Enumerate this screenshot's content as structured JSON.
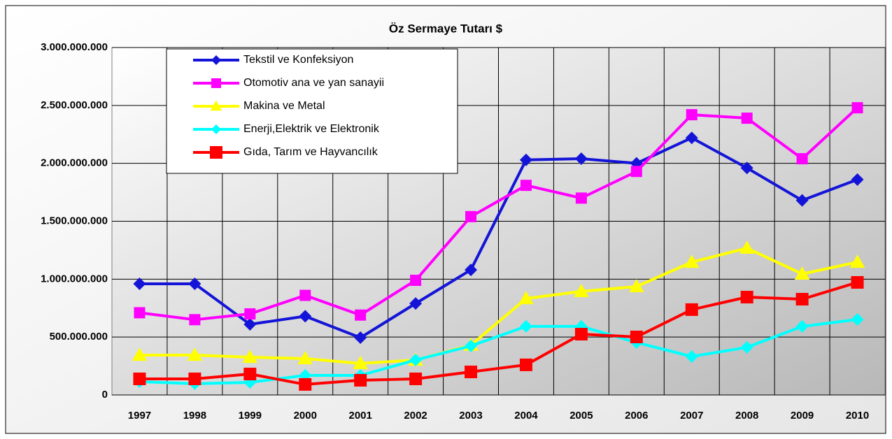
{
  "chart_data": {
    "type": "line",
    "title": "Öz Sermaye Tutarı $",
    "categories": [
      "1997",
      "1998",
      "1999",
      "2000",
      "2001",
      "2002",
      "2003",
      "2004",
      "2005",
      "2006",
      "2007",
      "2008",
      "2009",
      "2010"
    ],
    "series": [
      {
        "name": "Tekstil ve Konfeksiyon",
        "color": "#1414d8",
        "marker": "diamond",
        "values": [
          960000000,
          960000000,
          610000000,
          680000000,
          495000000,
          790000000,
          1080000000,
          2030000000,
          2040000000,
          2000000000,
          2220000000,
          1960000000,
          1680000000,
          1860000000
        ]
      },
      {
        "name": "Otomotiv ana ve yan sanayii",
        "color": "#ff00ff",
        "marker": "square",
        "values": [
          710000000,
          650000000,
          700000000,
          860000000,
          690000000,
          990000000,
          1540000000,
          1810000000,
          1700000000,
          1930000000,
          2420000000,
          2390000000,
          2040000000,
          2480000000
        ]
      },
      {
        "name": "Makina ve Metal",
        "color": "#ffff00",
        "marker": "triangle",
        "values": [
          344000000,
          344000000,
          326000000,
          314000000,
          272000000,
          302000000,
          430000000,
          833000000,
          894000000,
          936000000,
          1147000000,
          1268000000,
          1045000000,
          1147000000
        ]
      },
      {
        "name": "Enerji,Elektrik ve Elektronik",
        "color": "#00ffff",
        "marker": "diamond",
        "values": [
          115000000,
          97000000,
          109000000,
          169000000,
          169000000,
          302000000,
          423000000,
          592000000,
          592000000,
          453000000,
          332000000,
          411000000,
          592000000,
          652000000
        ]
      },
      {
        "name": "Gıda, Tarım ve Hayvancılık",
        "color": "#ff0000",
        "marker": "square",
        "values": [
          139000000,
          139000000,
          181000000,
          91000000,
          127000000,
          139000000,
          199000000,
          260000000,
          525000000,
          501000000,
          737000000,
          845000000,
          827000000,
          972000000
        ]
      }
    ],
    "ylim": [
      0,
      3000000000
    ],
    "yticks": [
      0,
      {
        "value": 500000000,
        "label": "500.000.000"
      },
      {
        "value": 1000000000,
        "label": "1.000.000.000"
      },
      {
        "value": 1500000000,
        "label": "1.500.000.000"
      },
      {
        "value": 2000000000,
        "label": "2.000.000.000"
      },
      {
        "value": 2500000000,
        "label": "2.500.000.000"
      },
      {
        "value": 3000000000,
        "label": "3.000.000.000"
      }
    ],
    "grid": true,
    "legend": "top-left"
  }
}
